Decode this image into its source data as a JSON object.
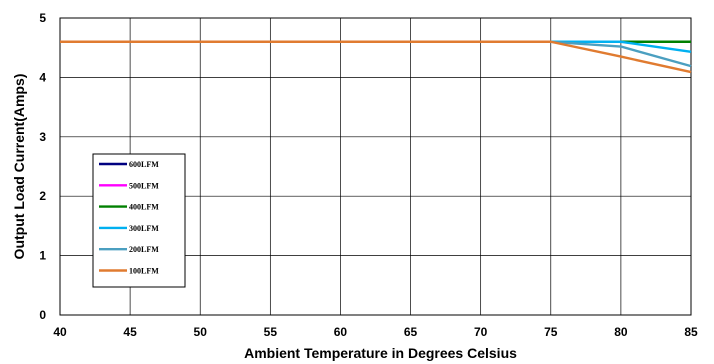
{
  "chart_data": {
    "type": "line",
    "xlabel": "Ambient Temperature in Degrees Celsius",
    "ylabel": "Output  Load Current(Amps)",
    "xlim": [
      40,
      85
    ],
    "ylim": [
      0,
      5
    ],
    "xticks": [
      40,
      45,
      50,
      55,
      60,
      65,
      70,
      75,
      80,
      85
    ],
    "yticks": [
      0,
      1,
      2,
      3,
      4,
      5
    ],
    "grid": true,
    "legend_position": "left",
    "x": [
      40,
      45,
      50,
      55,
      60,
      65,
      70,
      75,
      80,
      85
    ],
    "series": [
      {
        "name": "600LFM",
        "color": "#000080",
        "values": [
          4.6,
          4.6,
          4.6,
          4.6,
          4.6,
          4.6,
          4.6,
          4.6,
          4.6,
          4.6
        ]
      },
      {
        "name": "500LFM",
        "color": "#ff00ff",
        "values": [
          4.6,
          4.6,
          4.6,
          4.6,
          4.6,
          4.6,
          4.6,
          4.6,
          4.6,
          4.6
        ]
      },
      {
        "name": "400LFM",
        "color": "#008000",
        "values": [
          4.6,
          4.6,
          4.6,
          4.6,
          4.6,
          4.6,
          4.6,
          4.6,
          4.6,
          4.6
        ]
      },
      {
        "name": "300LFM",
        "color": "#00b0f0",
        "values": [
          4.6,
          4.6,
          4.6,
          4.6,
          4.6,
          4.6,
          4.6,
          4.6,
          4.6,
          4.43
        ]
      },
      {
        "name": "200LFM",
        "color": "#4b9fc0",
        "values": [
          4.6,
          4.6,
          4.6,
          4.6,
          4.6,
          4.6,
          4.6,
          4.6,
          4.52,
          4.19
        ]
      },
      {
        "name": "100LFM",
        "color": "#e07b30",
        "values": [
          4.6,
          4.6,
          4.6,
          4.6,
          4.6,
          4.6,
          4.6,
          4.6,
          4.35,
          4.09
        ]
      }
    ]
  }
}
